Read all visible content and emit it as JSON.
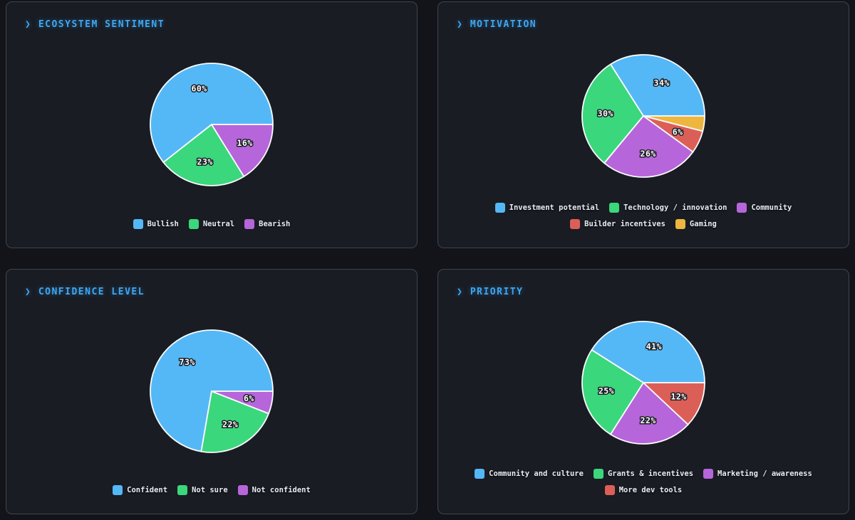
{
  "ui": {
    "chevron": "❯"
  },
  "theme": {
    "page_bg": "#121419",
    "panel_bg": "#191c23",
    "panel_border": "#3d4450",
    "title_color": "#3ea8f4",
    "legend_text_color": "#e9ecf1",
    "slice_border_color": "#fafbfd",
    "percent_label_color": "#ffffff",
    "palette": {
      "blue": "#55b8f6",
      "green": "#3bd77c",
      "purple": "#b765da",
      "red": "#dc5f57",
      "yellow": "#eeb63e"
    }
  },
  "chart_data": [
    {
      "type": "pie",
      "title": "ECOSYSTEM SENTIMENT",
      "labels": [
        "Bullish",
        "Neutral",
        "Bearish"
      ],
      "values": [
        60,
        23,
        16
      ],
      "percent_labels": [
        "60%",
        "23%",
        "16%"
      ],
      "colors": [
        "#55b8f6",
        "#3bd77c",
        "#b765da"
      ],
      "start_angle_deg": 0,
      "direction": "counterclockwise",
      "legend_position": "bottom"
    },
    {
      "type": "pie",
      "title": "MOTIVATION",
      "labels": [
        "Investment potential",
        "Technology / innovation",
        "Community",
        "Builder incentives",
        "Gaming"
      ],
      "values": [
        34,
        30,
        26,
        6,
        4
      ],
      "percent_labels": [
        "34%",
        "30%",
        "26%",
        "6%",
        null
      ],
      "colors": [
        "#55b8f6",
        "#3bd77c",
        "#b765da",
        "#dc5f57",
        "#eeb63e"
      ],
      "start_angle_deg": 0,
      "direction": "counterclockwise",
      "legend_position": "bottom"
    },
    {
      "type": "pie",
      "title": "CONFIDENCE LEVEL",
      "labels": [
        "Confident",
        "Not sure",
        "Not confident"
      ],
      "values": [
        73,
        22,
        6
      ],
      "percent_labels": [
        "73%",
        "22%",
        "6%"
      ],
      "colors": [
        "#55b8f6",
        "#3bd77c",
        "#b765da"
      ],
      "start_angle_deg": 0,
      "direction": "counterclockwise",
      "legend_position": "bottom"
    },
    {
      "type": "pie",
      "title": "PRIORITY",
      "labels": [
        "Community and culture",
        "Grants & incentives",
        "Marketing / awareness",
        "More dev tools"
      ],
      "values": [
        41,
        25,
        22,
        12
      ],
      "percent_labels": [
        "41%",
        "25%",
        "22%",
        "12%"
      ],
      "colors": [
        "#55b8f6",
        "#3bd77c",
        "#b765da",
        "#dc5f57"
      ],
      "start_angle_deg": 0,
      "direction": "counterclockwise",
      "legend_position": "bottom"
    }
  ]
}
